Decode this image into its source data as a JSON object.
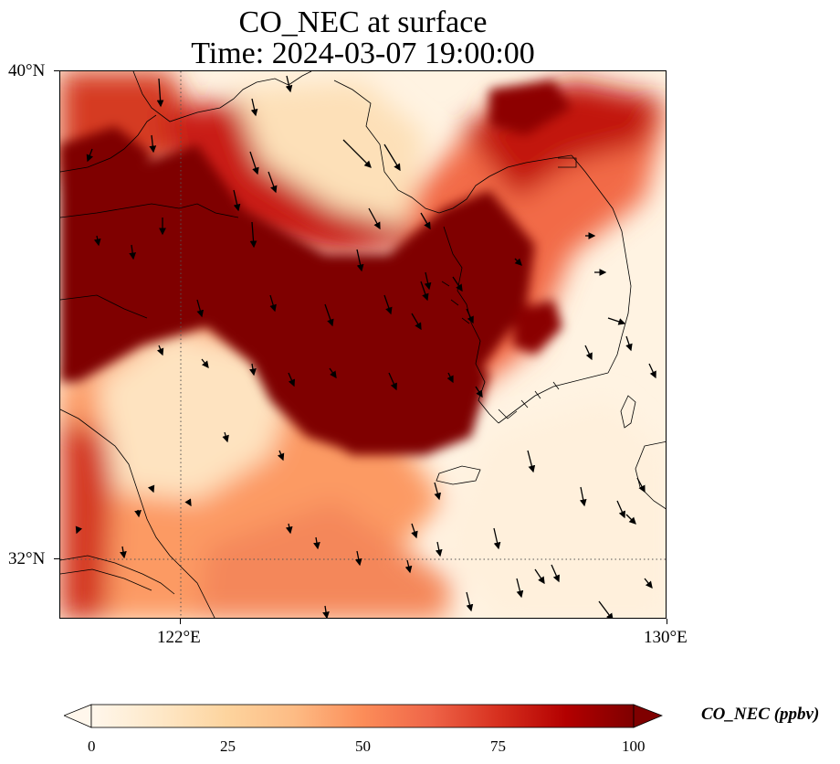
{
  "title": {
    "line1": "CO_NEC at surface",
    "line2": "Time: 2024-03-07 19:00:00"
  },
  "axes": {
    "lat_labels": [
      "40°N",
      "32°N"
    ],
    "lon_labels": [
      "122°E",
      "130°E"
    ],
    "lat_range": [
      31,
      40
    ],
    "lon_range": [
      120,
      130
    ],
    "gridlines": "dotted at 32°N and 122°E"
  },
  "colorbar": {
    "title": "CO_NEC (ppbv)",
    "ticks": [
      "0",
      "25",
      "50",
      "75",
      "100"
    ],
    "range": [
      0,
      100
    ],
    "colormap": "OrRd",
    "extend": "both",
    "colors": [
      "#fff7ec",
      "#fee8c8",
      "#fdd49e",
      "#fdbb84",
      "#fc8d59",
      "#ef6548",
      "#d7301f",
      "#b30000",
      "#7f0000"
    ]
  },
  "map": {
    "features": [
      "coastlines",
      "wind-vectors",
      "CO-concentration-field"
    ],
    "wind_vectors_shown": true
  }
}
